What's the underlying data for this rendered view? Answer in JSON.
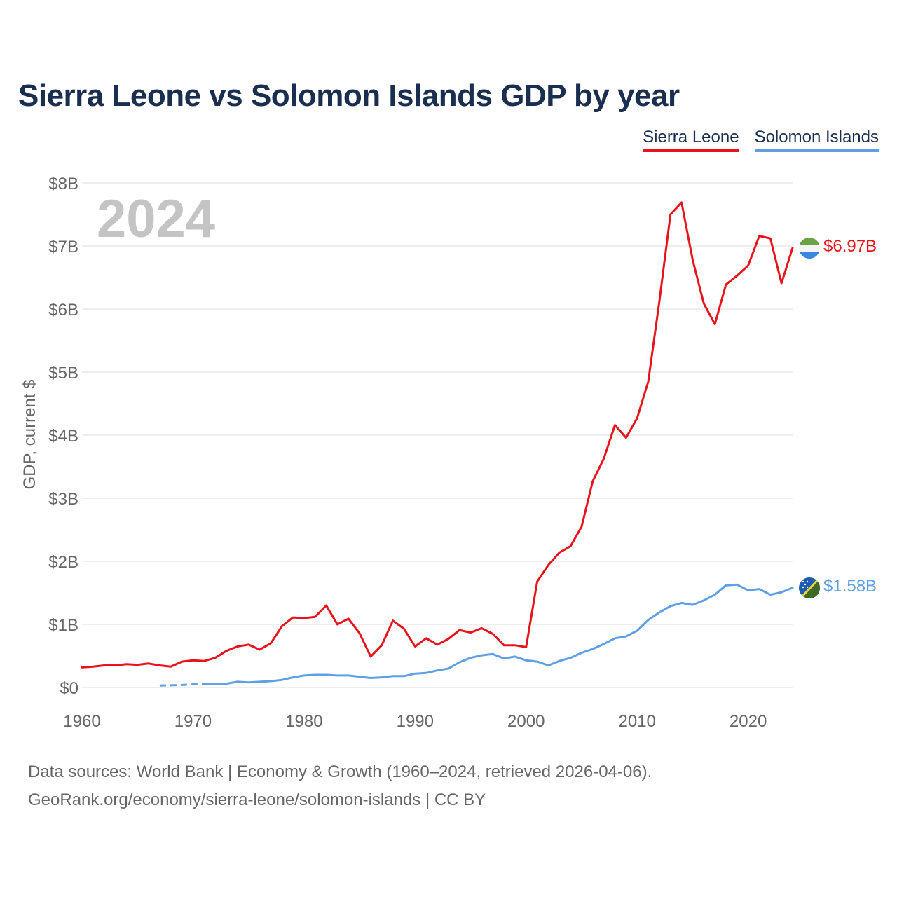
{
  "title": "Sierra Leone vs Solomon Islands GDP by year",
  "legend": {
    "sierra_leone": "Sierra Leone",
    "solomon_islands": "Solomon Islands"
  },
  "year_watermark": "2024",
  "source": {
    "line1": "Data sources: World Bank | Economy & Growth (1960–2024, retrieved 2026-04-06).",
    "line2": "GeoRank.org/economy/sierra-leone/solomon-islands | CC BY"
  },
  "colors": {
    "sierra_leone": "#e8141c",
    "solomon_islands": "#5fa0e4",
    "grid": "#e3e3e3",
    "tick_text": "#666666",
    "title": "#1a2e4f"
  },
  "chart_data": {
    "type": "line",
    "title": "Sierra Leone vs Solomon Islands GDP by year",
    "xlabel": "",
    "ylabel": "GDP, current $",
    "xlim": [
      1960,
      2024
    ],
    "ylim": [
      0,
      8
    ],
    "y_unit": "billion US$",
    "y_ticks": [
      0,
      1,
      2,
      3,
      4,
      5,
      6,
      7,
      8
    ],
    "y_tick_labels": [
      "$0",
      "$1B",
      "$2B",
      "$3B",
      "$4B",
      "$5B",
      "$6B",
      "$7B",
      "$8B"
    ],
    "x_ticks": [
      1960,
      1970,
      1980,
      1990,
      2000,
      2010,
      2020
    ],
    "x_tick_labels": [
      "1960",
      "1970",
      "1980",
      "1990",
      "2000",
      "2010",
      "2020"
    ],
    "grid": true,
    "legend_position": "top-right",
    "series": [
      {
        "name": "Sierra Leone",
        "end_label": "$6.97B",
        "flag_icon": "sierra-leone-flag-icon",
        "x": [
          1960,
          1961,
          1962,
          1963,
          1964,
          1965,
          1966,
          1967,
          1968,
          1969,
          1970,
          1971,
          1972,
          1973,
          1974,
          1975,
          1976,
          1977,
          1978,
          1979,
          1980,
          1981,
          1982,
          1983,
          1984,
          1985,
          1986,
          1987,
          1988,
          1989,
          1990,
          1991,
          1992,
          1993,
          1994,
          1995,
          1996,
          1997,
          1998,
          1999,
          2000,
          2001,
          2002,
          2003,
          2004,
          2005,
          2006,
          2007,
          2008,
          2009,
          2010,
          2011,
          2012,
          2013,
          2014,
          2015,
          2016,
          2017,
          2018,
          2019,
          2020,
          2021,
          2022,
          2023,
          2024
        ],
        "values": [
          0.32,
          0.33,
          0.35,
          0.35,
          0.37,
          0.36,
          0.38,
          0.35,
          0.33,
          0.41,
          0.43,
          0.42,
          0.47,
          0.58,
          0.65,
          0.68,
          0.6,
          0.7,
          0.97,
          1.11,
          1.1,
          1.12,
          1.3,
          1.0,
          1.09,
          0.86,
          0.49,
          0.67,
          1.06,
          0.93,
          0.65,
          0.78,
          0.68,
          0.77,
          0.91,
          0.87,
          0.94,
          0.85,
          0.67,
          0.67,
          0.64,
          1.68,
          1.94,
          2.14,
          2.24,
          2.55,
          3.27,
          3.63,
          4.16,
          3.96,
          4.27,
          4.85,
          6.12,
          7.5,
          7.69,
          6.78,
          6.09,
          5.76,
          6.39,
          6.53,
          6.69,
          7.16,
          7.12,
          6.41,
          6.97
        ]
      },
      {
        "name": "Solomon Islands",
        "end_label": "$1.58B",
        "flag_icon": "solomon-islands-flag-icon",
        "x": [
          1967,
          1968,
          1969,
          1970,
          1971,
          1972,
          1973,
          1974,
          1975,
          1976,
          1977,
          1978,
          1979,
          1980,
          1981,
          1982,
          1983,
          1984,
          1985,
          1986,
          1987,
          1988,
          1989,
          1990,
          1991,
          1992,
          1993,
          1994,
          1995,
          1996,
          1997,
          1998,
          1999,
          2000,
          2001,
          2002,
          2003,
          2004,
          2005,
          2006,
          2007,
          2008,
          2009,
          2010,
          2011,
          2012,
          2013,
          2014,
          2015,
          2016,
          2017,
          2018,
          2019,
          2020,
          2021,
          2022,
          2023,
          2024
        ],
        "values": [
          0.03,
          0.035,
          0.04,
          0.05,
          0.06,
          0.05,
          0.06,
          0.09,
          0.08,
          0.09,
          0.1,
          0.12,
          0.16,
          0.19,
          0.2,
          0.2,
          0.19,
          0.19,
          0.17,
          0.15,
          0.16,
          0.18,
          0.18,
          0.22,
          0.23,
          0.27,
          0.3,
          0.4,
          0.47,
          0.51,
          0.53,
          0.46,
          0.49,
          0.43,
          0.41,
          0.35,
          0.42,
          0.47,
          0.55,
          0.61,
          0.69,
          0.78,
          0.81,
          0.9,
          1.07,
          1.19,
          1.29,
          1.34,
          1.31,
          1.38,
          1.47,
          1.62,
          1.63,
          1.54,
          1.56,
          1.47,
          1.51,
          1.58
        ],
        "dashed_until": 1971
      }
    ]
  }
}
